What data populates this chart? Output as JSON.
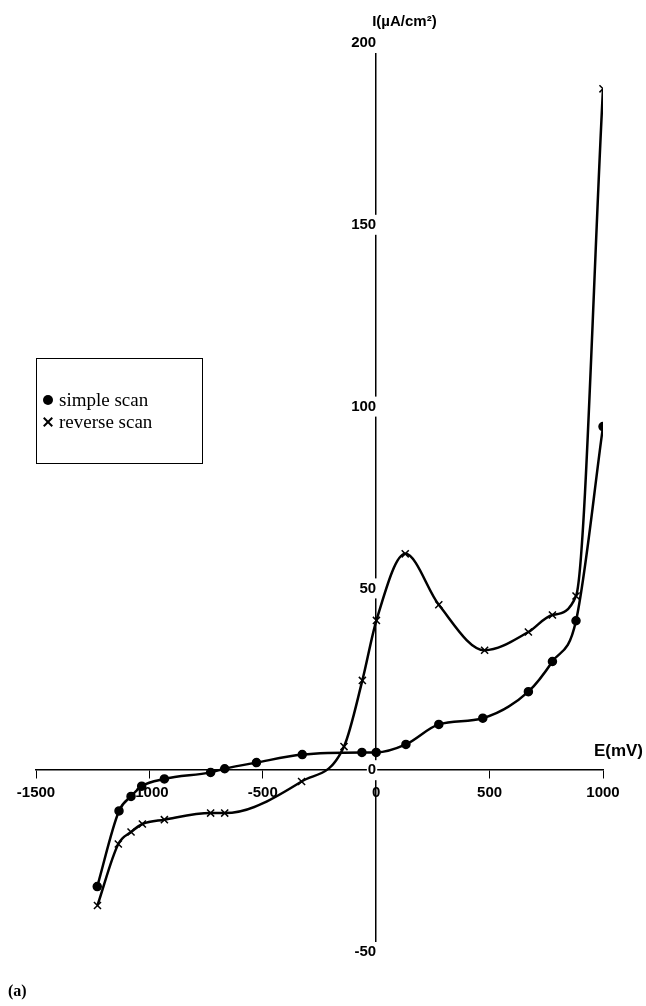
{
  "chart_data": {
    "type": "line",
    "xlabel": "E(mV)",
    "ylabel": "I(µA/cm²)",
    "xlim": [
      -1500,
      1000
    ],
    "xticks": [
      -1500,
      -1000,
      -500,
      0,
      500,
      1000
    ],
    "ylim": [
      -50,
      200
    ],
    "yticks": [
      -50,
      0,
      50,
      100,
      150,
      200
    ],
    "grid": false,
    "legend": "left",
    "annotations": [
      "(a)"
    ],
    "series": [
      {
        "name": "simple scan",
        "color": "#000000",
        "marker": "circle",
        "x": [
          -1230,
          -1134,
          -1081,
          -1034,
          -934,
          -730,
          -668,
          -528,
          -326,
          -63,
          0,
          131,
          276,
          470,
          671,
          777,
          881,
          1000
        ],
        "values": [
          -32,
          -11.2,
          -7.2,
          -4.4,
          -2.4,
          -0.6,
          0.4,
          2.1,
          4.3,
          4.9,
          4.9,
          7.1,
          12.6,
          14.3,
          21.6,
          29.9,
          41.1,
          94.5
        ]
      },
      {
        "name": "reverse scan",
        "color": "#000000",
        "marker": "cross",
        "x": [
          -1229,
          -1137,
          -1081,
          -1031,
          -934,
          -730,
          -668,
          -329,
          -142,
          -61,
          1,
          128,
          276,
          478,
          671,
          777,
          881,
          1000
        ],
        "values": [
          -37.2,
          -20.3,
          -17,
          -14.8,
          -13.6,
          -11.8,
          -11.8,
          -3.1,
          6.5,
          24.7,
          41.2,
          59.5,
          45.5,
          33,
          38,
          42.7,
          47.9,
          187.4
        ]
      }
    ]
  }
}
